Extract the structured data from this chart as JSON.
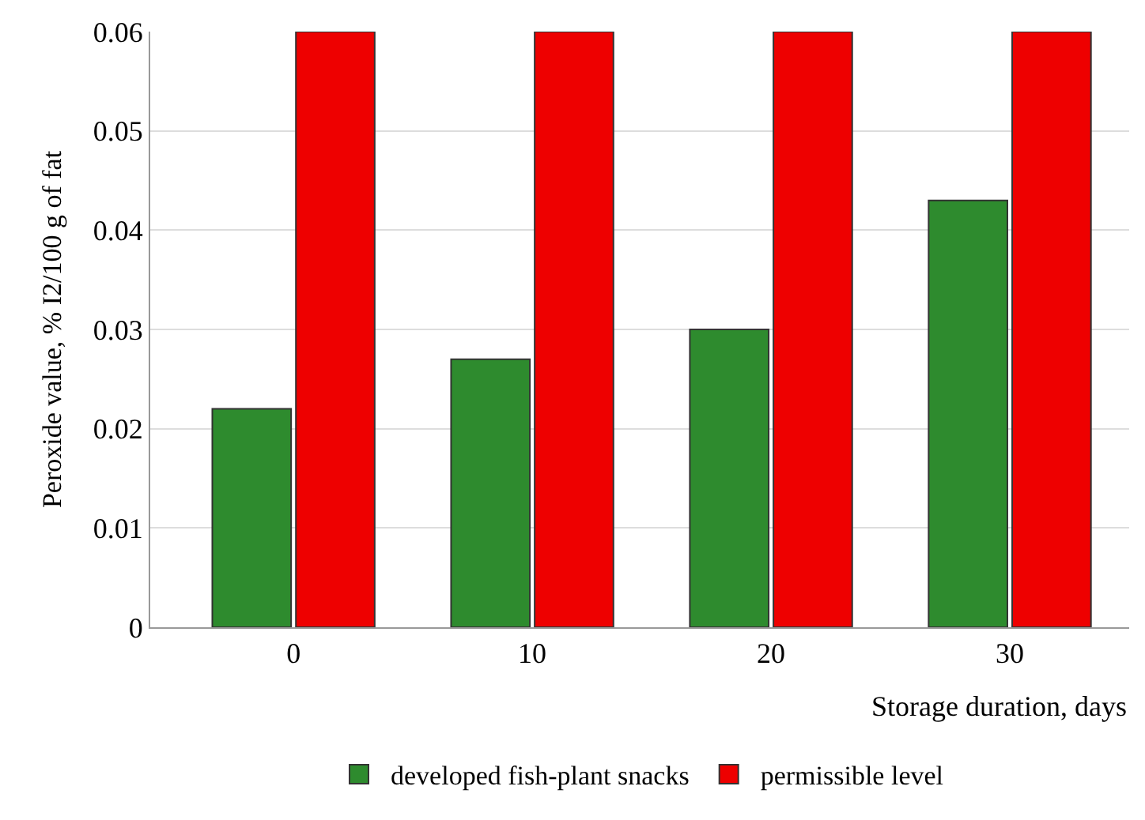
{
  "chart_data": {
    "type": "bar",
    "xlabel": "Storage duration, days",
    "ylabel": "Peroxide value, % I2/100 g of fat",
    "categories": [
      "0",
      "10",
      "20",
      "30"
    ],
    "series": [
      {
        "name": "developed fish-plant snacks",
        "color": "#2e8b2e",
        "values": [
          0.022,
          0.027,
          0.03,
          0.043
        ]
      },
      {
        "name": "permissible level",
        "color": "#ee0000",
        "values": [
          0.06,
          0.06,
          0.06,
          0.06
        ]
      }
    ],
    "ylim": [
      0,
      0.06
    ],
    "yticks": [
      0,
      0.01,
      0.02,
      0.03,
      0.04,
      0.05,
      0.06
    ],
    "grid": "y",
    "legend": "bottom"
  }
}
